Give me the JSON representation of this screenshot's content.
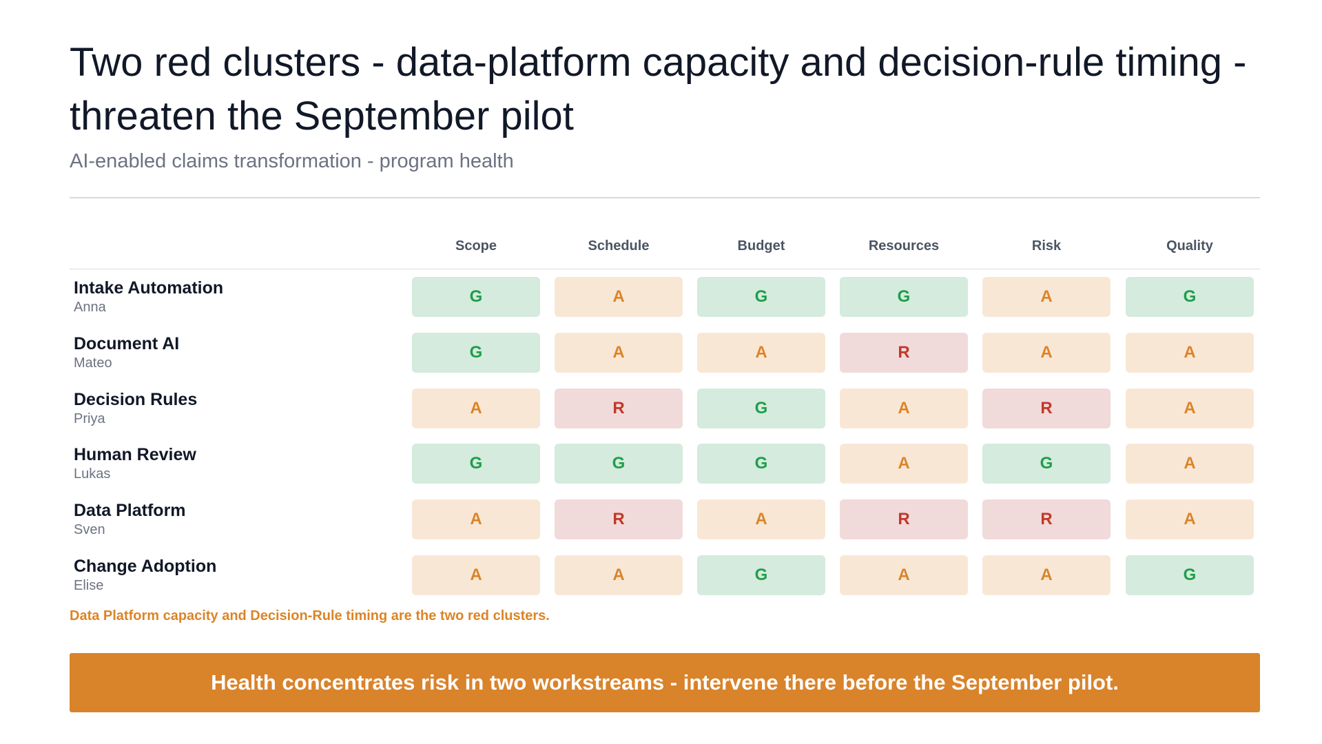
{
  "header": {
    "title": "Two red clusters - data-platform capacity and decision-rule timing - threaten the September pilot",
    "subtitle": "AI-enabled claims transformation - program health"
  },
  "columns": [
    "Scope",
    "Schedule",
    "Budget",
    "Resources",
    "Risk",
    "Quality"
  ],
  "rows": [
    {
      "name": "Intake Automation",
      "owner": "Anna",
      "ratings": [
        "G",
        "A",
        "G",
        "G",
        "A",
        "G"
      ]
    },
    {
      "name": "Document AI",
      "owner": "Mateo",
      "ratings": [
        "G",
        "A",
        "A",
        "R",
        "A",
        "A"
      ]
    },
    {
      "name": "Decision Rules",
      "owner": "Priya",
      "ratings": [
        "A",
        "R",
        "G",
        "A",
        "R",
        "A"
      ]
    },
    {
      "name": "Human Review",
      "owner": "Lukas",
      "ratings": [
        "G",
        "G",
        "G",
        "A",
        "G",
        "A"
      ]
    },
    {
      "name": "Data Platform",
      "owner": "Sven",
      "ratings": [
        "A",
        "R",
        "A",
        "R",
        "R",
        "A"
      ]
    },
    {
      "name": "Change Adoption",
      "owner": "Elise",
      "ratings": [
        "A",
        "A",
        "G",
        "A",
        "A",
        "G"
      ]
    }
  ],
  "note": "Data Platform capacity and Decision-Rule timing are the two red clusters.",
  "banner": "Health concentrates risk in two workstreams - intervene there before the September pilot.",
  "colors": {
    "green_bg": "#d4ebdd",
    "green_text": "#1f9d4a",
    "amber_bg": "#f9e7d6",
    "amber_text": "#dc8427",
    "red_bg": "#f1dada",
    "red_text": "#c0392b",
    "banner": "#d9832a"
  }
}
